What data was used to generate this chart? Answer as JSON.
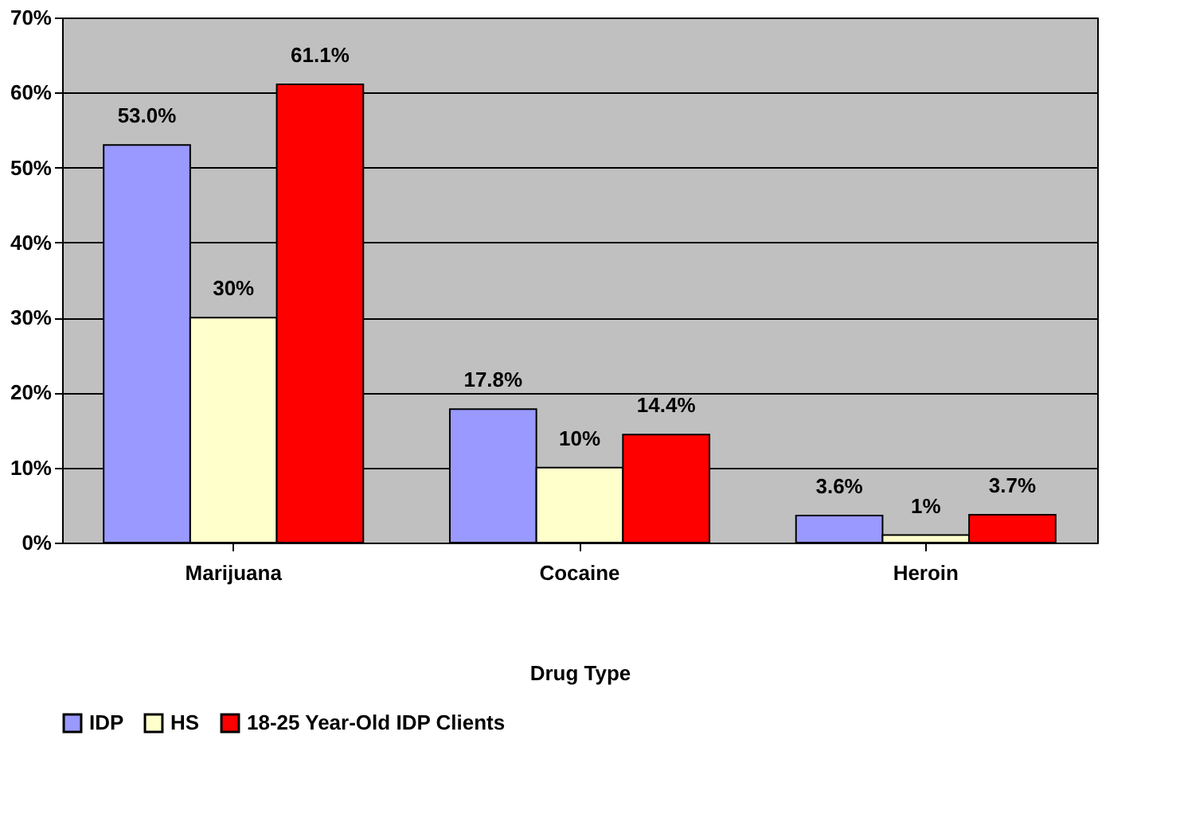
{
  "chart_data": {
    "type": "bar",
    "xlabel": "Drug Type",
    "categories": [
      "Marijuana",
      "Cocaine",
      "Heroin"
    ],
    "series": [
      {
        "name": "IDP",
        "color": "#9999ff",
        "values": [
          53.0,
          17.8,
          3.6
        ],
        "value_labels": [
          "53.0%",
          "17.8%",
          "3.6%"
        ]
      },
      {
        "name": "HS",
        "color": "#ffffcc",
        "values": [
          30,
          10,
          1
        ],
        "value_labels": [
          "30%",
          "10%",
          "1%"
        ]
      },
      {
        "name": "18-25 Year-Old IDP Clients",
        "color": "#ff0000",
        "values": [
          61.1,
          14.4,
          3.7
        ],
        "value_labels": [
          "61.1%",
          "14.4%",
          "3.7%"
        ]
      }
    ],
    "ylim": [
      0,
      70
    ],
    "yticks": [
      {
        "value": 0,
        "label": "0%"
      },
      {
        "value": 10,
        "label": "10%"
      },
      {
        "value": 20,
        "label": "20%"
      },
      {
        "value": 30,
        "label": "30%"
      },
      {
        "value": 40,
        "label": "40%"
      },
      {
        "value": 50,
        "label": "50%"
      },
      {
        "value": 60,
        "label": "60%"
      },
      {
        "value": 70,
        "label": "70%"
      }
    ],
    "grid": "y",
    "legend": "bottom"
  }
}
